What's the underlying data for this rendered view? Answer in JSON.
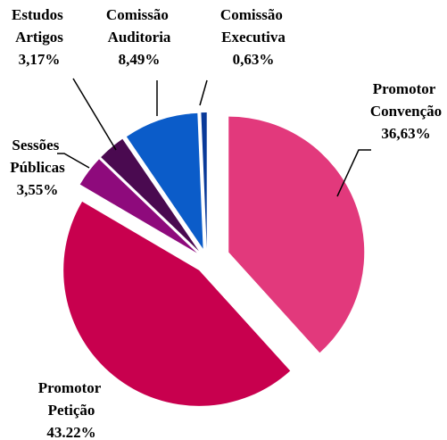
{
  "chart_data": {
    "type": "pie",
    "categories": [
      "Promotor Convenção",
      "Promotor Petição",
      "Sessões Públicas",
      "Estudos Artigos",
      "Comissão Auditoria",
      "Comissão Executiva"
    ],
    "values": [
      36.63,
      43.22,
      3.55,
      3.17,
      8.49,
      0.63
    ],
    "value_labels": [
      "36,63%",
      "43.22%",
      "3,55%",
      "3,17%",
      "8,49%",
      "0,63%"
    ],
    "colors": [
      "#e2397c",
      "#c8004e",
      "#8e0a7c",
      "#4a0a50",
      "#0b5cc9",
      "#0a3a99"
    ]
  }
}
